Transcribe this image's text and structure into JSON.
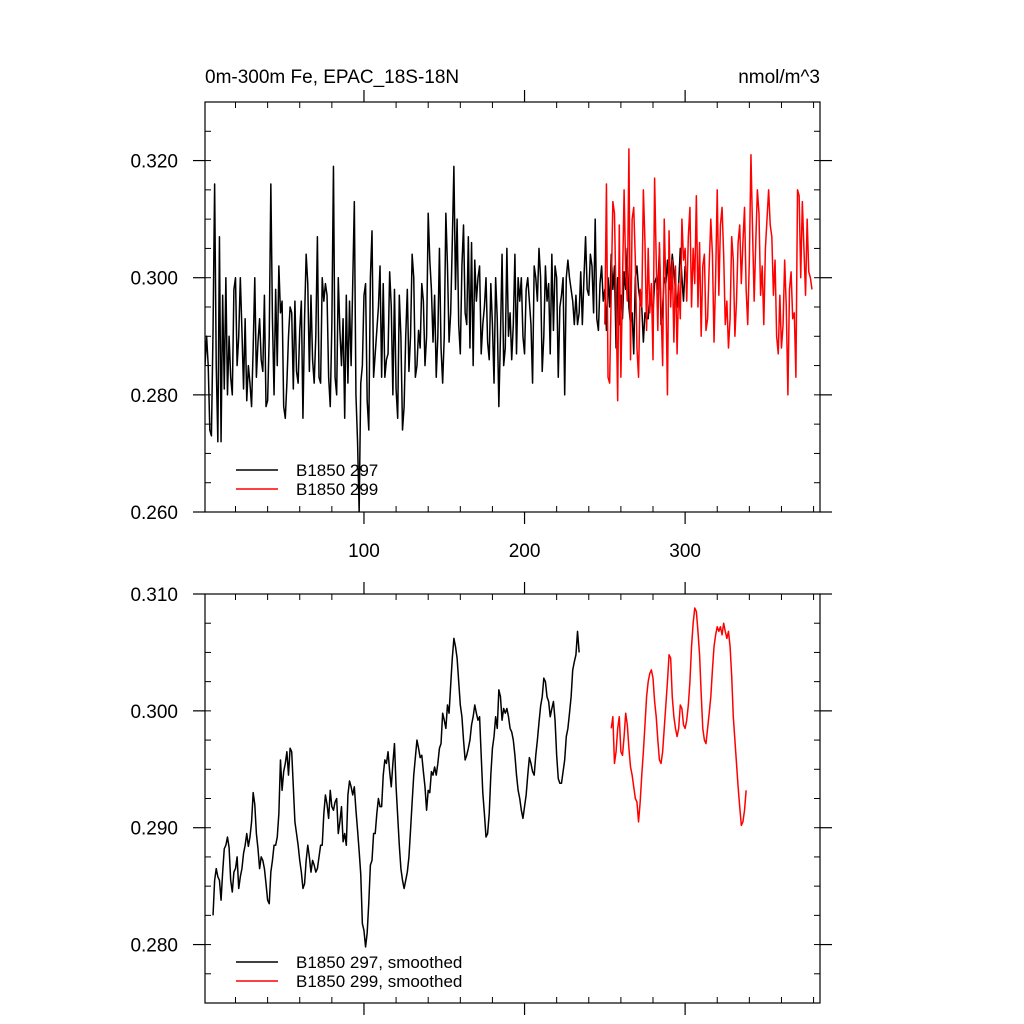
{
  "chart_data": [
    {
      "type": "line",
      "title": "0m-300m Fe, EPAC_18S-18N",
      "units": "nmol/m^3",
      "xlim": [
        1,
        384
      ],
      "ylim": [
        0.26,
        0.33
      ],
      "xticks": [
        100,
        200,
        300
      ],
      "xtick_labels": [
        "100",
        "200",
        "300"
      ],
      "yticks": [
        0.26,
        0.28,
        0.3,
        0.32
      ],
      "ytick_labels": [
        "0.260",
        "0.280",
        "0.300",
        "0.320"
      ],
      "legend_position": "bottom-left",
      "series": [
        {
          "name": "B1850 297",
          "color": "#000000",
          "x_start": 1,
          "values": [
            0.285,
            0.29,
            0.285,
            0.274,
            0.273,
            0.291,
            0.316,
            0.285,
            0.272,
            0.307,
            0.272,
            0.297,
            0.281,
            0.3,
            0.28,
            0.29,
            0.283,
            0.28,
            0.298,
            0.3,
            0.285,
            0.29,
            0.3,
            0.291,
            0.281,
            0.293,
            0.279,
            0.285,
            0.282,
            0.278,
            0.288,
            0.3,
            0.283,
            0.289,
            0.293,
            0.286,
            0.284,
            0.297,
            0.278,
            0.279,
            0.29,
            0.316,
            0.293,
            0.28,
            0.298,
            0.285,
            0.302,
            0.294,
            0.296,
            0.278,
            0.276,
            0.282,
            0.29,
            0.295,
            0.294,
            0.281,
            0.296,
            0.284,
            0.282,
            0.291,
            0.296,
            0.276,
            0.293,
            0.304,
            0.299,
            0.284,
            0.297,
            0.286,
            0.282,
            0.29,
            0.307,
            0.283,
            0.282,
            0.3,
            0.296,
            0.299,
            0.297,
            0.283,
            0.278,
            0.292,
            0.319,
            0.283,
            0.28,
            0.3,
            0.291,
            0.285,
            0.293,
            0.276,
            0.297,
            0.282,
            0.296,
            0.285,
            0.299,
            0.313,
            0.28,
            0.272,
            0.26,
            0.282,
            0.285,
            0.297,
            0.299,
            0.279,
            0.274,
            0.3,
            0.308,
            0.283,
            0.287,
            0.291,
            0.295,
            0.302,
            0.283,
            0.299,
            0.283,
            0.286,
            0.287,
            0.301,
            0.295,
            0.28,
            0.298,
            0.281,
            0.276,
            0.297,
            0.29,
            0.274,
            0.278,
            0.29,
            0.298,
            0.284,
            0.29,
            0.304,
            0.3,
            0.283,
            0.285,
            0.291,
            0.288,
            0.299,
            0.296,
            0.285,
            0.29,
            0.311,
            0.303,
            0.298,
            0.289,
            0.297,
            0.283,
            0.29,
            0.305,
            0.288,
            0.282,
            0.29,
            0.311,
            0.302,
            0.289,
            0.294,
            0.306,
            0.319,
            0.298,
            0.31,
            0.292,
            0.287,
            0.302,
            0.309,
            0.294,
            0.292,
            0.307,
            0.288,
            0.306,
            0.285,
            0.303,
            0.296,
            0.3,
            0.302,
            0.287,
            0.292,
            0.295,
            0.3,
            0.289,
            0.286,
            0.299,
            0.292,
            0.282,
            0.3,
            0.293,
            0.278,
            0.29,
            0.304,
            0.285,
            0.288,
            0.305,
            0.29,
            0.294,
            0.286,
            0.292,
            0.304,
            0.287,
            0.3,
            0.296,
            0.3,
            0.29,
            0.287,
            0.298,
            0.3,
            0.296,
            0.292,
            0.282,
            0.302,
            0.3,
            0.296,
            0.305,
            0.3,
            0.284,
            0.29,
            0.302,
            0.296,
            0.299,
            0.287,
            0.304,
            0.291,
            0.302,
            0.3,
            0.283,
            0.295,
            0.297,
            0.3,
            0.28,
            0.3,
            0.303,
            0.3,
            0.298,
            0.296,
            0.292,
            0.297,
            0.292,
            0.294,
            0.301,
            0.292,
            0.3,
            0.307,
            0.298,
            0.297,
            0.304,
            0.302,
            0.294,
            0.31,
            0.293,
            0.291,
            0.299,
            0.302,
            0.296,
            0.298,
            0.291,
            0.3,
            0.295,
            0.304,
            0.298,
            0.302,
            0.288,
            0.3,
            0.292,
            0.297,
            0.293,
            0.301,
            0.298,
            0.305,
            0.295,
            0.292,
            0.294,
            0.287,
            0.3,
            0.302,
            0.298,
            0.296,
            0.295,
            0.289,
            0.294,
            0.293,
            0.293,
            0.297,
            0.296,
            0.294,
            0.299,
            0.3,
            0.298,
            0.305,
            0.292,
            0.295,
            0.3,
            0.299,
            0.303,
            0.298,
            0.3,
            0.304,
            0.301,
            0.298,
            0.295,
            0.299,
            0.305,
            0.3,
            0.296,
            0.302
          ]
        },
        {
          "name": "B1850 299",
          "color": "#ff0000",
          "x_start": 250,
          "values": [
            0.292,
            0.316,
            0.283,
            0.282,
            0.298,
            0.313,
            0.311,
            0.296,
            0.279,
            0.309,
            0.283,
            0.299,
            0.315,
            0.301,
            0.296,
            0.322,
            0.286,
            0.31,
            0.312,
            0.303,
            0.288,
            0.283,
            0.298,
            0.295,
            0.315,
            0.306,
            0.291,
            0.305,
            0.294,
            0.299,
            0.286,
            0.317,
            0.303,
            0.291,
            0.306,
            0.295,
            0.285,
            0.31,
            0.298,
            0.28,
            0.308,
            0.295,
            0.303,
            0.289,
            0.302,
            0.287,
            0.299,
            0.293,
            0.31,
            0.303,
            0.305,
            0.296,
            0.307,
            0.312,
            0.295,
            0.305,
            0.299,
            0.314,
            0.295,
            0.306,
            0.29,
            0.302,
            0.304,
            0.291,
            0.293,
            0.302,
            0.31,
            0.304,
            0.289,
            0.3,
            0.315,
            0.297,
            0.309,
            0.312,
            0.304,
            0.292,
            0.296,
            0.288,
            0.293,
            0.307,
            0.303,
            0.29,
            0.296,
            0.306,
            0.309,
            0.299,
            0.306,
            0.312,
            0.298,
            0.292,
            0.303,
            0.321,
            0.308,
            0.296,
            0.306,
            0.315,
            0.311,
            0.297,
            0.302,
            0.292,
            0.305,
            0.31,
            0.315,
            0.309,
            0.307,
            0.297,
            0.303,
            0.29,
            0.287,
            0.297,
            0.288,
            0.292,
            0.303,
            0.295,
            0.28,
            0.298,
            0.301,
            0.293,
            0.294,
            0.283,
            0.315,
            0.314,
            0.3,
            0.313,
            0.305,
            0.297,
            0.31,
            0.301,
            0.3,
            0.298
          ]
        }
      ]
    },
    {
      "type": "line",
      "xlim": [
        1,
        384
      ],
      "ylim": [
        0.275,
        0.31
      ],
      "xticks": [
        100,
        200,
        300
      ],
      "yticks": [
        0.28,
        0.29,
        0.3,
        0.31
      ],
      "ytick_labels": [
        "0.280",
        "0.290",
        "0.300",
        "0.310"
      ],
      "legend_position": "bottom-left",
      "series": [
        {
          "name": "B1850 297, smoothed",
          "color": "#000000",
          "x_start": 6,
          "values": [
            0.2825,
            0.2855,
            0.2865,
            0.2858,
            0.2855,
            0.2838,
            0.2862,
            0.2882,
            0.2885,
            0.2892,
            0.2883,
            0.2855,
            0.2845,
            0.2862,
            0.2865,
            0.2875,
            0.2848,
            0.2858,
            0.2865,
            0.2878,
            0.2885,
            0.2895,
            0.2884,
            0.2892,
            0.2905,
            0.293,
            0.292,
            0.2895,
            0.2882,
            0.2865,
            0.2875,
            0.2872,
            0.2865,
            0.2852,
            0.2838,
            0.2835,
            0.2862,
            0.2872,
            0.2885,
            0.2885,
            0.2892,
            0.2912,
            0.2958,
            0.2932,
            0.2948,
            0.2955,
            0.2965,
            0.2945,
            0.2968,
            0.2965,
            0.2935,
            0.2905,
            0.2895,
            0.2885,
            0.2872,
            0.2862,
            0.2848,
            0.2852,
            0.2872,
            0.2885,
            0.2875,
            0.2862,
            0.2872,
            0.2868,
            0.2862,
            0.2865,
            0.2875,
            0.2885,
            0.2885,
            0.2912,
            0.2928,
            0.292,
            0.2908,
            0.2932,
            0.2918,
            0.2915,
            0.2922,
            0.2925,
            0.2895,
            0.2905,
            0.2918,
            0.2888,
            0.2895,
            0.2885,
            0.2928,
            0.294,
            0.2935,
            0.2928,
            0.2935,
            0.2915,
            0.2898,
            0.288,
            0.286,
            0.2818,
            0.2812,
            0.2798,
            0.281,
            0.2836,
            0.2868,
            0.2872,
            0.2895,
            0.2895,
            0.2912,
            0.2925,
            0.2918,
            0.2918,
            0.2945,
            0.2958,
            0.2955,
            0.2965,
            0.2948,
            0.2935,
            0.2955,
            0.2972,
            0.2935,
            0.291,
            0.2885,
            0.2865,
            0.2855,
            0.2848,
            0.2855,
            0.2862,
            0.2875,
            0.2898,
            0.2922,
            0.2945,
            0.296,
            0.2975,
            0.2968,
            0.296,
            0.2962,
            0.2948,
            0.2935,
            0.2915,
            0.2932,
            0.293,
            0.2948,
            0.2945,
            0.2952,
            0.2945,
            0.2955,
            0.2968,
            0.2972,
            0.2998,
            0.2992,
            0.2985,
            0.3005,
            0.2998,
            0.3022,
            0.3045,
            0.3062,
            0.3055,
            0.3045,
            0.3025,
            0.3005,
            0.2995,
            0.2975,
            0.2958,
            0.2962,
            0.2968,
            0.2975,
            0.2988,
            0.2995,
            0.3005,
            0.2998,
            0.2992,
            0.2995,
            0.2962,
            0.293,
            0.2912,
            0.2892,
            0.2895,
            0.2912,
            0.2945,
            0.2968,
            0.2978,
            0.2995,
            0.2985,
            0.3018,
            0.3012,
            0.2992,
            0.3002,
            0.2998,
            0.3002,
            0.2995,
            0.2985,
            0.2982,
            0.2975,
            0.2962,
            0.2945,
            0.2932,
            0.2925,
            0.2915,
            0.2908,
            0.2918,
            0.2928,
            0.2945,
            0.296,
            0.2955,
            0.2948,
            0.2945,
            0.2962,
            0.2975,
            0.299,
            0.3004,
            0.3012,
            0.3028,
            0.3025,
            0.3012,
            0.3008,
            0.2995,
            0.3002,
            0.3008,
            0.2992,
            0.2962,
            0.2942,
            0.2938,
            0.2938,
            0.2948,
            0.2958,
            0.2978,
            0.2985,
            0.2998,
            0.3012,
            0.3035,
            0.3042,
            0.3048,
            0.3068,
            0.305
          ]
        },
        {
          "name": "B1850 299, smoothed",
          "color": "#ff0000",
          "x_start": 254,
          "values": [
            0.2985,
            0.2995,
            0.2955,
            0.2965,
            0.2985,
            0.2995,
            0.2965,
            0.2962,
            0.2978,
            0.2998,
            0.2988,
            0.2968,
            0.2952,
            0.2945,
            0.2935,
            0.2925,
            0.2922,
            0.2905,
            0.2922,
            0.2945,
            0.2965,
            0.2988,
            0.3012,
            0.3025,
            0.3032,
            0.3035,
            0.3028,
            0.3008,
            0.2995,
            0.2975,
            0.2958,
            0.2955,
            0.2965,
            0.2985,
            0.3005,
            0.3025,
            0.3048,
            0.3045,
            0.3012,
            0.2995,
            0.2985,
            0.2978,
            0.2985,
            0.3005,
            0.3002,
            0.2988,
            0.2985,
            0.2992,
            0.3005,
            0.3025,
            0.3055,
            0.3075,
            0.3088,
            0.3085,
            0.3068,
            0.3048,
            0.3015,
            0.2985,
            0.2975,
            0.2972,
            0.2985,
            0.2998,
            0.3012,
            0.3035,
            0.3055,
            0.3065,
            0.3072,
            0.3068,
            0.3072,
            0.3065,
            0.3075,
            0.3068,
            0.3062,
            0.3068,
            0.3055,
            0.303,
            0.2995,
            0.2975,
            0.2955,
            0.2935,
            0.2918,
            0.2902,
            0.2905,
            0.2915,
            0.2932
          ]
        }
      ]
    }
  ]
}
